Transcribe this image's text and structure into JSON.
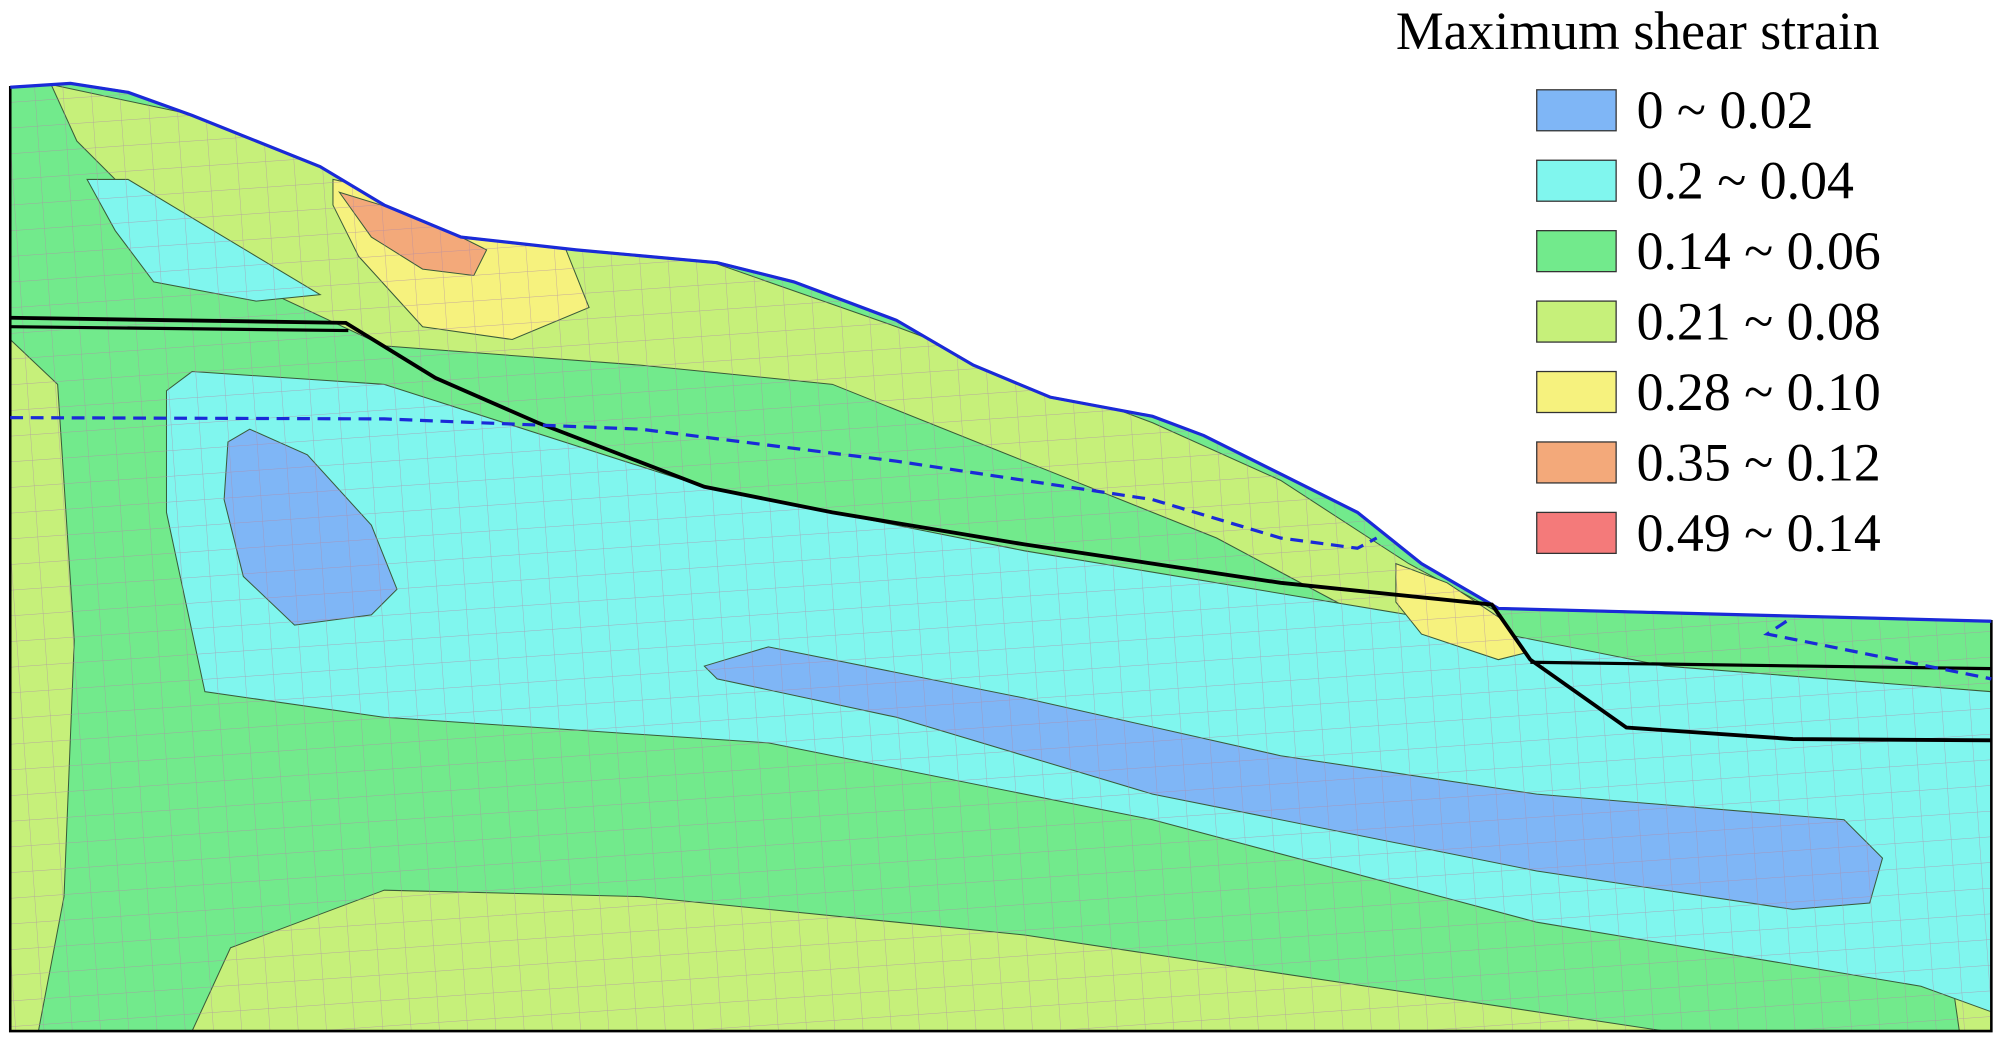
{
  "legend": {
    "title": "Maximum shear strain",
    "items": [
      {
        "label": "0 ~ 0.02",
        "color": "#7fb6f6"
      },
      {
        "label": "0.2 ~ 0.04",
        "color": "#80f6ee"
      },
      {
        "label": "0.14 ~ 0.06",
        "color": "#72ea8c"
      },
      {
        "label": "0.21 ~ 0.08",
        "color": "#c6f07a"
      },
      {
        "label": "0.28 ~ 0.10",
        "color": "#f6f27e"
      },
      {
        "label": "0.35 ~ 0.12",
        "color": "#f3a97a"
      },
      {
        "label": "0.49 ~ 0.14",
        "color": "#f47a7a"
      }
    ]
  }
}
